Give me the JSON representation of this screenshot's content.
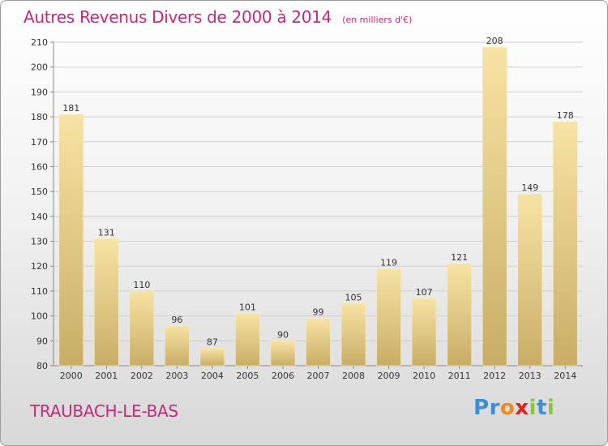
{
  "header": {
    "title": "Autres Revenus Divers de 2000 à 2014",
    "unit": "(en milliers d'€)"
  },
  "footer": {
    "commune": "TRAUBACH-LE-BAS",
    "brand": "Proxiti",
    "brand_letters": [
      "P",
      "r",
      "o",
      "x",
      "i",
      "t",
      "i"
    ],
    "brand_colors": [
      "#3b8fd6",
      "#3b8fd6",
      "#f08a1c",
      "#e2201e",
      "#8cc63f",
      "#3b8fd6",
      "#8cc63f"
    ]
  },
  "colors": {
    "title": "#c8287a",
    "bar_light": "#f6df9c",
    "bar_dark": "#c7aa62",
    "grid": "#cfcfcf"
  },
  "chart_data": {
    "type": "bar",
    "title": "Autres Revenus Divers de 2000 à 2014",
    "subtitle": "(en milliers d'€)",
    "xlabel": "",
    "ylabel": "",
    "ylim": [
      80,
      210
    ],
    "yticks": [
      80,
      90,
      100,
      110,
      120,
      130,
      140,
      150,
      160,
      170,
      180,
      190,
      200,
      210
    ],
    "grid": true,
    "categories": [
      "2000",
      "2001",
      "2002",
      "2003",
      "2004",
      "2005",
      "2006",
      "2007",
      "2008",
      "2009",
      "2010",
      "2011",
      "2012",
      "2013",
      "2014"
    ],
    "values": [
      181,
      131,
      110,
      96,
      87,
      101,
      90,
      99,
      105,
      119,
      107,
      121,
      208,
      149,
      178
    ]
  }
}
